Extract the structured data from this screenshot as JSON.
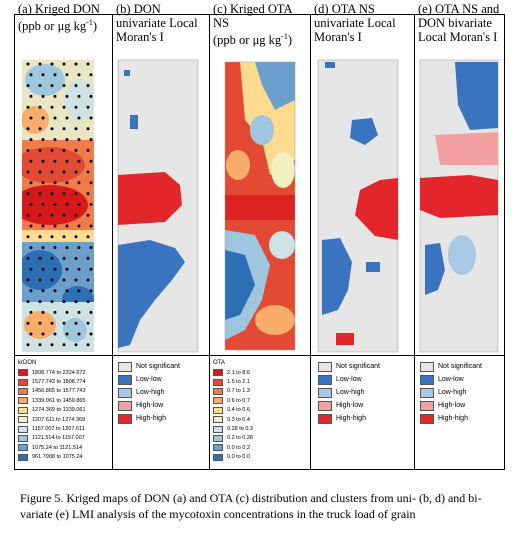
{
  "panels": [
    {
      "title": "(a) Kriged DON",
      "unit": "(ppb or μg kg",
      "unit_sup": "-1",
      "unit_end": ")",
      "legend_title": "krDON",
      "legend": [
        {
          "label": "1808.774 to 2324.672",
          "color": "#d7191c"
        },
        {
          "label": "1577.743 to 1808.774",
          "color": "#e34a33"
        },
        {
          "label": "1450.865 to 1577.743",
          "color": "#f07c4a"
        },
        {
          "label": "1339.061 to 1450.865",
          "color": "#f9ad6b"
        },
        {
          "label": "1274.369 to 1339.061",
          "color": "#fddb8f"
        },
        {
          "label": "1207.611 to 1274.369",
          "color": "#f2f0c0"
        },
        {
          "label": "1157.007 to 1207.611",
          "color": "#cfe3e6"
        },
        {
          "label": "1121.514 to 1157.007",
          "color": "#9ec7df"
        },
        {
          "label": "1075.24 to 1121.514",
          "color": "#6c9fcc"
        },
        {
          "label": "961.7908 to 1075.24",
          "color": "#2c6fb5"
        }
      ]
    },
    {
      "title": "(b) DON univariate Local Moran's I",
      "legend": [
        {
          "label": "Not significant",
          "color": "#e6e6e6"
        },
        {
          "label": "Low-low",
          "color": "#3a74c0"
        },
        {
          "label": "Low-high",
          "color": "#a8c8e4"
        },
        {
          "label": "High-low",
          "color": "#f2a0a0"
        },
        {
          "label": "High-high",
          "color": "#e3262b"
        }
      ]
    },
    {
      "title": "(c) Kriged OTA NS",
      "unit": "(ppb or μg kg",
      "unit_sup": "-1",
      "unit_end": ")",
      "legend_title": "OTA",
      "legend": [
        {
          "label": "2.1 to 8.6",
          "color": "#d7191c"
        },
        {
          "label": "1.5 to 2.1",
          "color": "#e34a33"
        },
        {
          "label": "0.7 to 1.3",
          "color": "#f07c4a"
        },
        {
          "label": "0.6 to 0.7",
          "color": "#f9ad6b"
        },
        {
          "label": "0.4 to 0.6",
          "color": "#fddb8f"
        },
        {
          "label": "0.3 to 0.4",
          "color": "#f2f0c0"
        },
        {
          "label": "0.28 to 0.3",
          "color": "#cfe3e6"
        },
        {
          "label": "0.2 to 0.28",
          "color": "#9ec7df"
        },
        {
          "label": "0.0 to 0.2",
          "color": "#6c9fcc"
        },
        {
          "label": "0.0 to 0.0",
          "color": "#2c6fb5"
        }
      ]
    },
    {
      "title": "(d) OTA NS univariate Local Moran's I",
      "legend": [
        {
          "label": "Not significant",
          "color": "#e6e6e6"
        },
        {
          "label": "Low-low",
          "color": "#3a74c0"
        },
        {
          "label": "Low-high",
          "color": "#a8c8e4"
        },
        {
          "label": "High-low",
          "color": "#f2a0a0"
        },
        {
          "label": "High-high",
          "color": "#e3262b"
        }
      ]
    },
    {
      "title": "(e) OTA NS and DON bivariate Local Moran's I",
      "legend": [
        {
          "label": "Not significant",
          "color": "#e6e6e6"
        },
        {
          "label": "Low-low",
          "color": "#3a74c0"
        },
        {
          "label": "Low-high",
          "color": "#a8c8e4"
        },
        {
          "label": "High-low",
          "color": "#f2a0a0"
        },
        {
          "label": "High-high",
          "color": "#e3262b"
        }
      ]
    }
  ],
  "caption": "Figure 5. Kriged maps of DON (a) and OTA (c) distribution and clusters from uni- (b, d) and bi-variate (e) LMI analysis of the mycotoxin concentrations in the truck load of grain"
}
